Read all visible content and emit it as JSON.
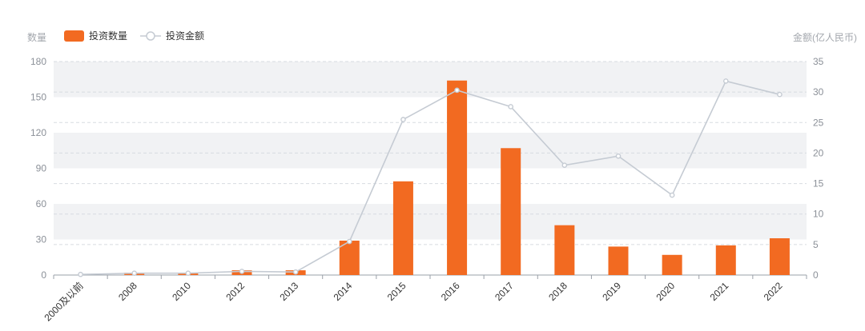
{
  "left_axis_title": "数量",
  "right_axis_title": "金额(亿人民币)",
  "legend": {
    "bar_label": "投资数量",
    "line_label": "投资金额"
  },
  "colors": {
    "bar": "#f26a21",
    "line": "#c5cbd3",
    "band": "#f1f2f4",
    "grid": "#d7dbe0",
    "tick_text": "#8b9098"
  },
  "chart_data": {
    "type": "bar",
    "categories": [
      "2000及以前",
      "2008",
      "2010",
      "2012",
      "2013",
      "2014",
      "2015",
      "2016",
      "2017",
      "2018",
      "2019",
      "2020",
      "2021",
      "2022"
    ],
    "series": [
      {
        "name": "投资数量",
        "type": "bar",
        "axis": "left",
        "values": [
          0,
          2,
          2,
          4,
          4,
          29,
          79,
          164,
          107,
          42,
          24,
          17,
          25,
          31
        ]
      },
      {
        "name": "投资金额",
        "type": "line",
        "axis": "right",
        "values": [
          0.1,
          0.3,
          0.3,
          0.6,
          0.5,
          5.5,
          25.5,
          30.3,
          27.6,
          18.0,
          19.5,
          13.1,
          31.8,
          29.6
        ]
      }
    ],
    "y_left": {
      "min": 0,
      "max": 180,
      "ticks": [
        0,
        30,
        60,
        90,
        120,
        150,
        180
      ]
    },
    "y_right": {
      "min": 0,
      "max": 35,
      "ticks": [
        0,
        5,
        10,
        15,
        20,
        25,
        30,
        35
      ]
    },
    "grid": true,
    "legend_position": "top-left"
  }
}
